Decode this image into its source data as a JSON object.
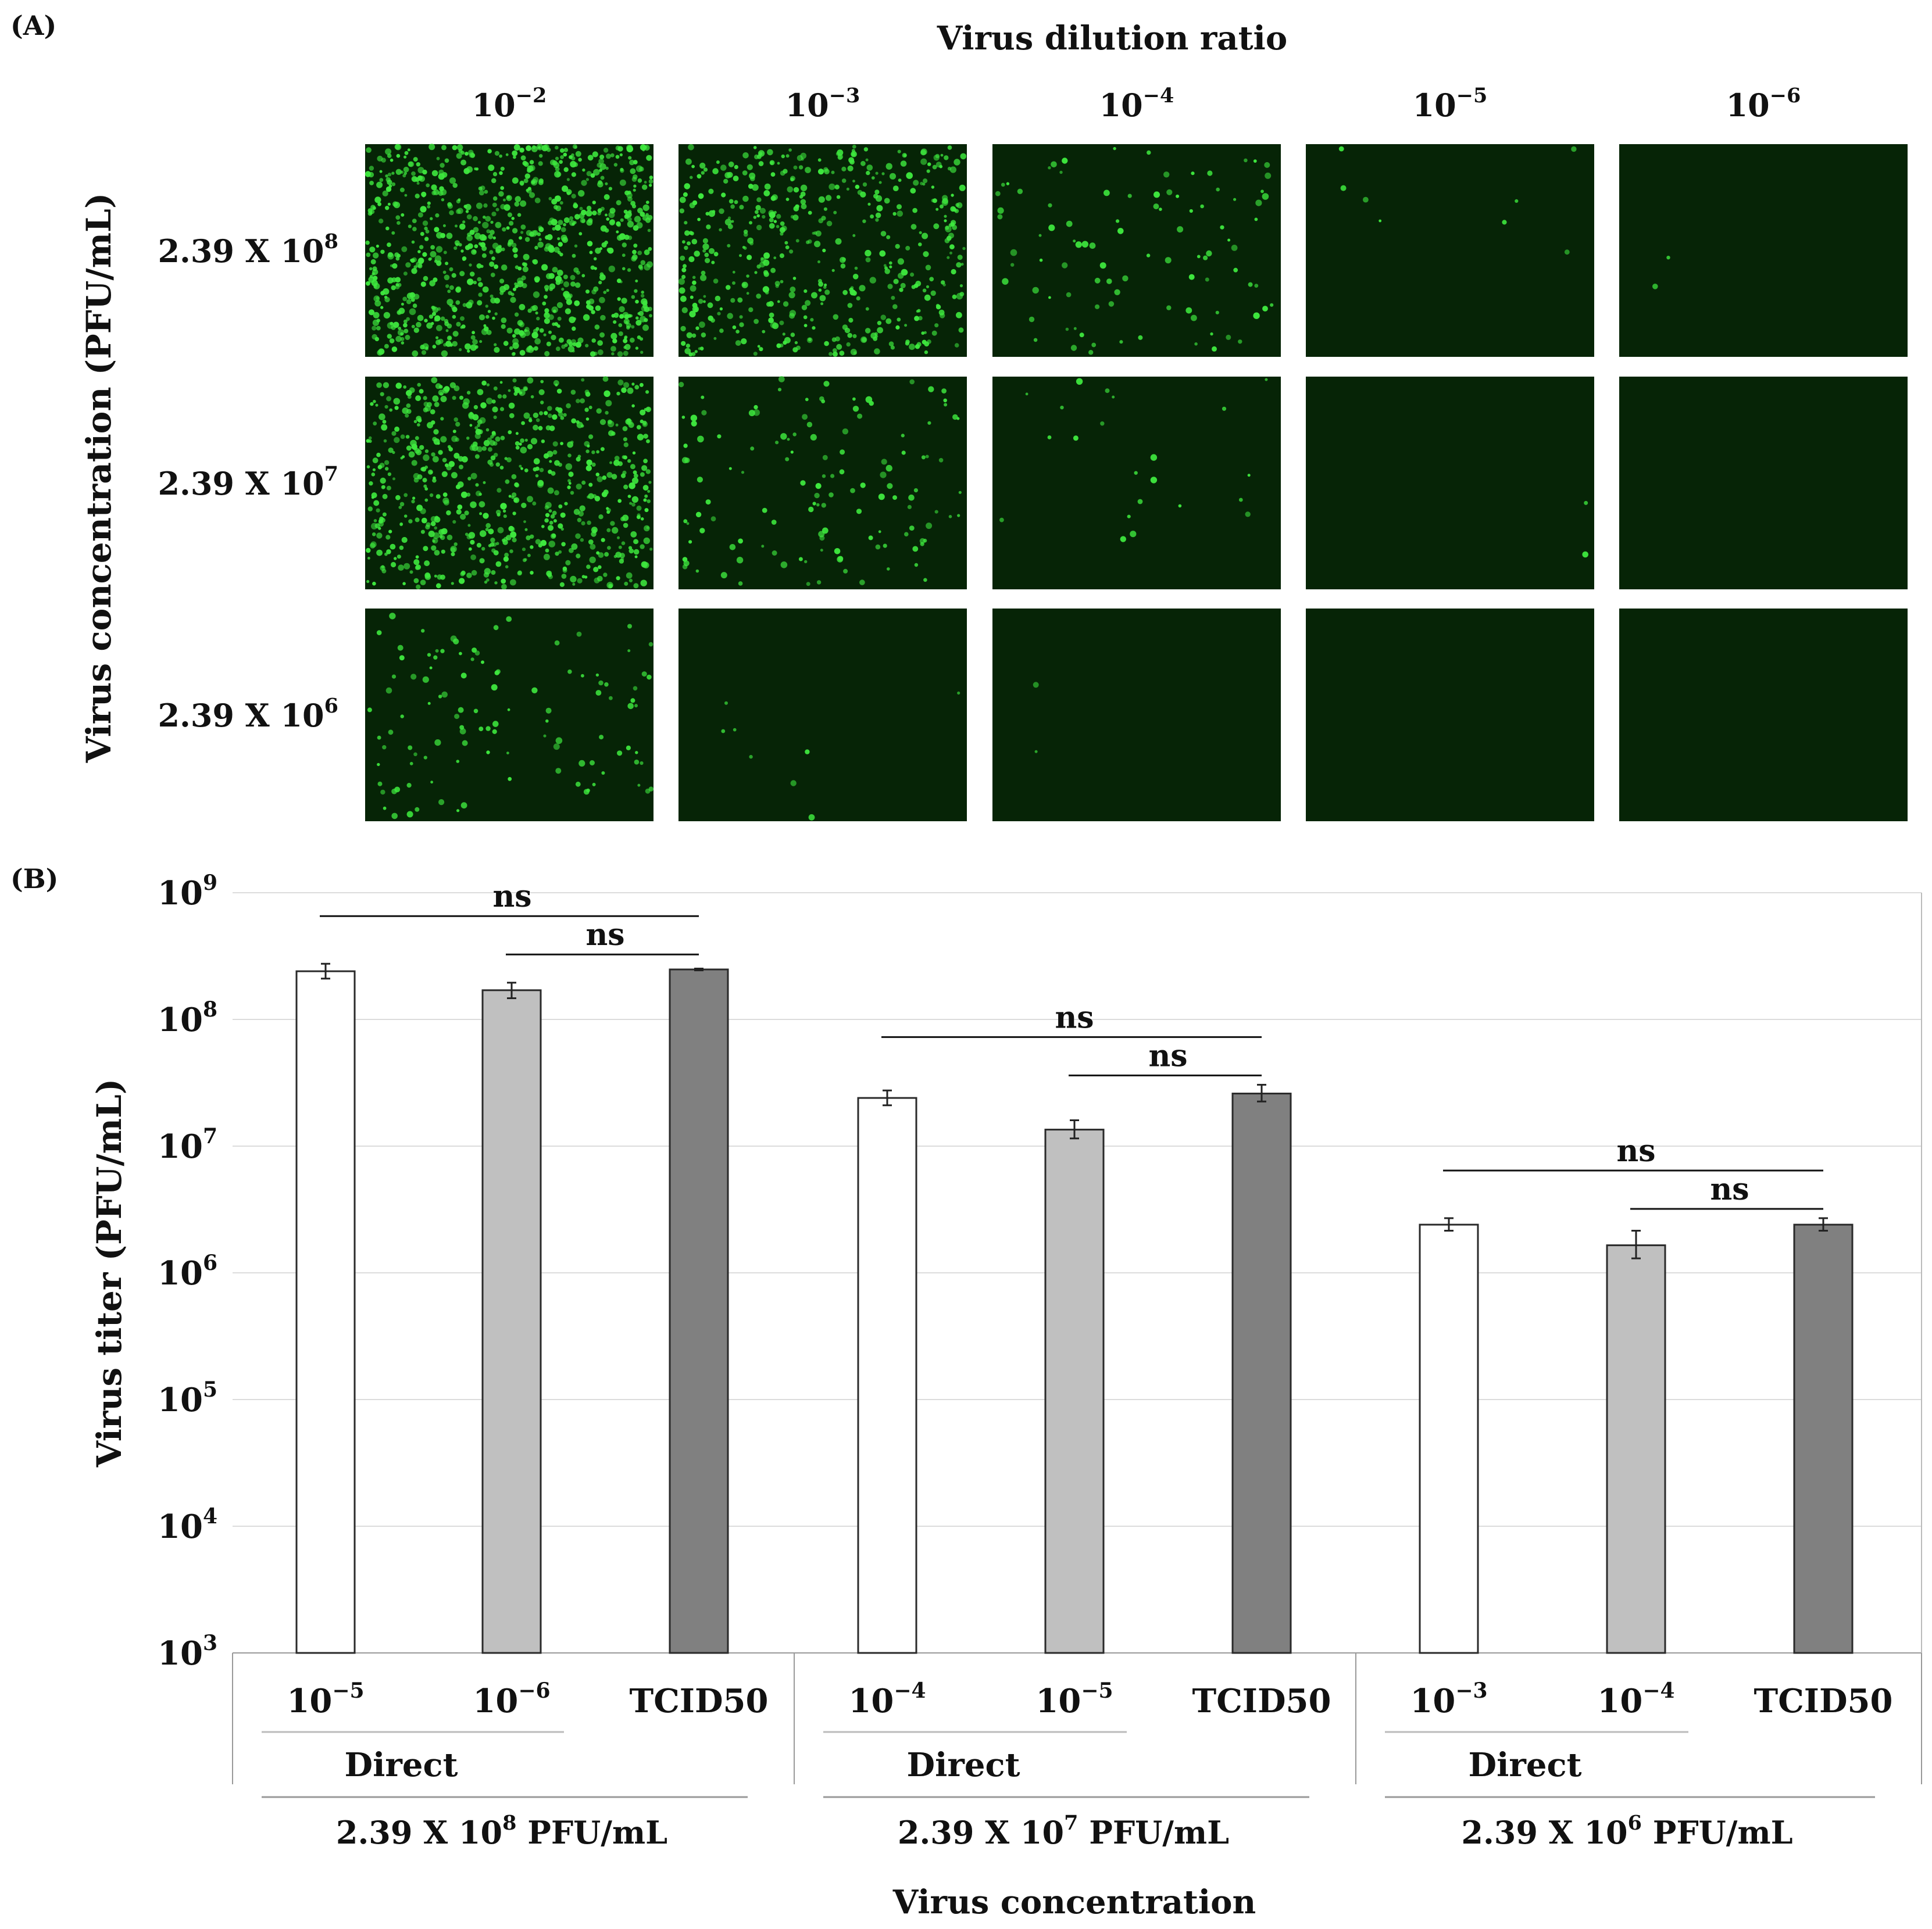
{
  "panel_a": {
    "label": "(A)",
    "title": "Virus dilution ratio",
    "ylabel": "Virus concentration (PFU/mL)",
    "column_labels": [
      {
        "base": "10",
        "exp": "−2"
      },
      {
        "base": "10",
        "exp": "−3"
      },
      {
        "base": "10",
        "exp": "−4"
      },
      {
        "base": "10",
        "exp": "−5"
      },
      {
        "base": "10",
        "exp": "−6"
      }
    ],
    "row_labels": [
      {
        "base": "2.39 X 10",
        "exp": "8"
      },
      {
        "base": "2.39 X 10",
        "exp": "7"
      },
      {
        "base": "2.39 X 10",
        "exp": "6"
      }
    ],
    "spot_counts": [
      [
        900,
        520,
        95,
        8,
        2
      ],
      [
        700,
        130,
        22,
        2,
        0
      ],
      [
        110,
        8,
        2,
        0,
        0
      ]
    ],
    "fluorescence_color": "#3ee83e",
    "well_background": "#062406"
  },
  "chart_data": {
    "type": "bar",
    "panel_label": "(B)",
    "ylabel": "Virus titer (PFU/mL)",
    "xlabel": "Virus concentration",
    "yscale": "log",
    "ylim": [
      1000,
      1000000000
    ],
    "yticks": [
      {
        "base": "10",
        "exp": "3"
      },
      {
        "base": "10",
        "exp": "4"
      },
      {
        "base": "10",
        "exp": "5"
      },
      {
        "base": "10",
        "exp": "6"
      },
      {
        "base": "10",
        "exp": "7"
      },
      {
        "base": "10",
        "exp": "8"
      },
      {
        "base": "10",
        "exp": "9"
      }
    ],
    "grid": true,
    "series_colors": {
      "direct_low": "#ffffff",
      "direct_high": "#c0c0c0",
      "tcid50": "#808080"
    },
    "groups": [
      {
        "concentration": {
          "base": "2.39 X 10",
          "exp": "8",
          "unit": " PFU/mL"
        },
        "method_label": "Direct",
        "bars": [
          {
            "label": {
              "base": "10",
              "exp": "−5"
            },
            "value": 240000000,
            "err_low": 210000000,
            "err_high": 275000000,
            "series": "direct_low"
          },
          {
            "label": {
              "base": "10",
              "exp": "−6"
            },
            "value": 170000000,
            "err_low": 147000000,
            "err_high": 195000000,
            "series": "direct_high"
          },
          {
            "label": {
              "text": "TCID50"
            },
            "value": 248000000,
            "err_low": 244000000,
            "err_high": 252000000,
            "series": "tcid50"
          }
        ],
        "significance": [
          {
            "text": "ns",
            "from": 0,
            "to": 2
          },
          {
            "text": "ns",
            "from": 1,
            "to": 2
          }
        ]
      },
      {
        "concentration": {
          "base": "2.39 X 10",
          "exp": "7",
          "unit": " PFU/mL"
        },
        "method_label": "Direct",
        "bars": [
          {
            "label": {
              "base": "10",
              "exp": "−4"
            },
            "value": 24000000,
            "err_low": 21000000,
            "err_high": 27500000,
            "series": "direct_low"
          },
          {
            "label": {
              "base": "10",
              "exp": "−5"
            },
            "value": 13500000,
            "err_low": 11500000,
            "err_high": 16000000,
            "series": "direct_high"
          },
          {
            "label": {
              "text": "TCID50"
            },
            "value": 26000000,
            "err_low": 22500000,
            "err_high": 30500000,
            "series": "tcid50"
          }
        ],
        "significance": [
          {
            "text": "ns",
            "from": 0,
            "to": 2
          },
          {
            "text": "ns",
            "from": 1,
            "to": 2
          }
        ]
      },
      {
        "concentration": {
          "base": "2.39 X 10",
          "exp": "6",
          "unit": " PFU/mL"
        },
        "method_label": "Direct",
        "bars": [
          {
            "label": {
              "base": "10",
              "exp": "−3"
            },
            "value": 2400000,
            "err_low": 2150000,
            "err_high": 2700000,
            "series": "direct_low"
          },
          {
            "label": {
              "base": "10",
              "exp": "−4"
            },
            "value": 1650000,
            "err_low": 1300000,
            "err_high": 2150000,
            "series": "direct_high"
          },
          {
            "label": {
              "text": "TCID50"
            },
            "value": 2400000,
            "err_low": 2150000,
            "err_high": 2700000,
            "series": "tcid50"
          }
        ],
        "significance": [
          {
            "text": "ns",
            "from": 0,
            "to": 2
          },
          {
            "text": "ns",
            "from": 1,
            "to": 2
          }
        ]
      }
    ]
  }
}
